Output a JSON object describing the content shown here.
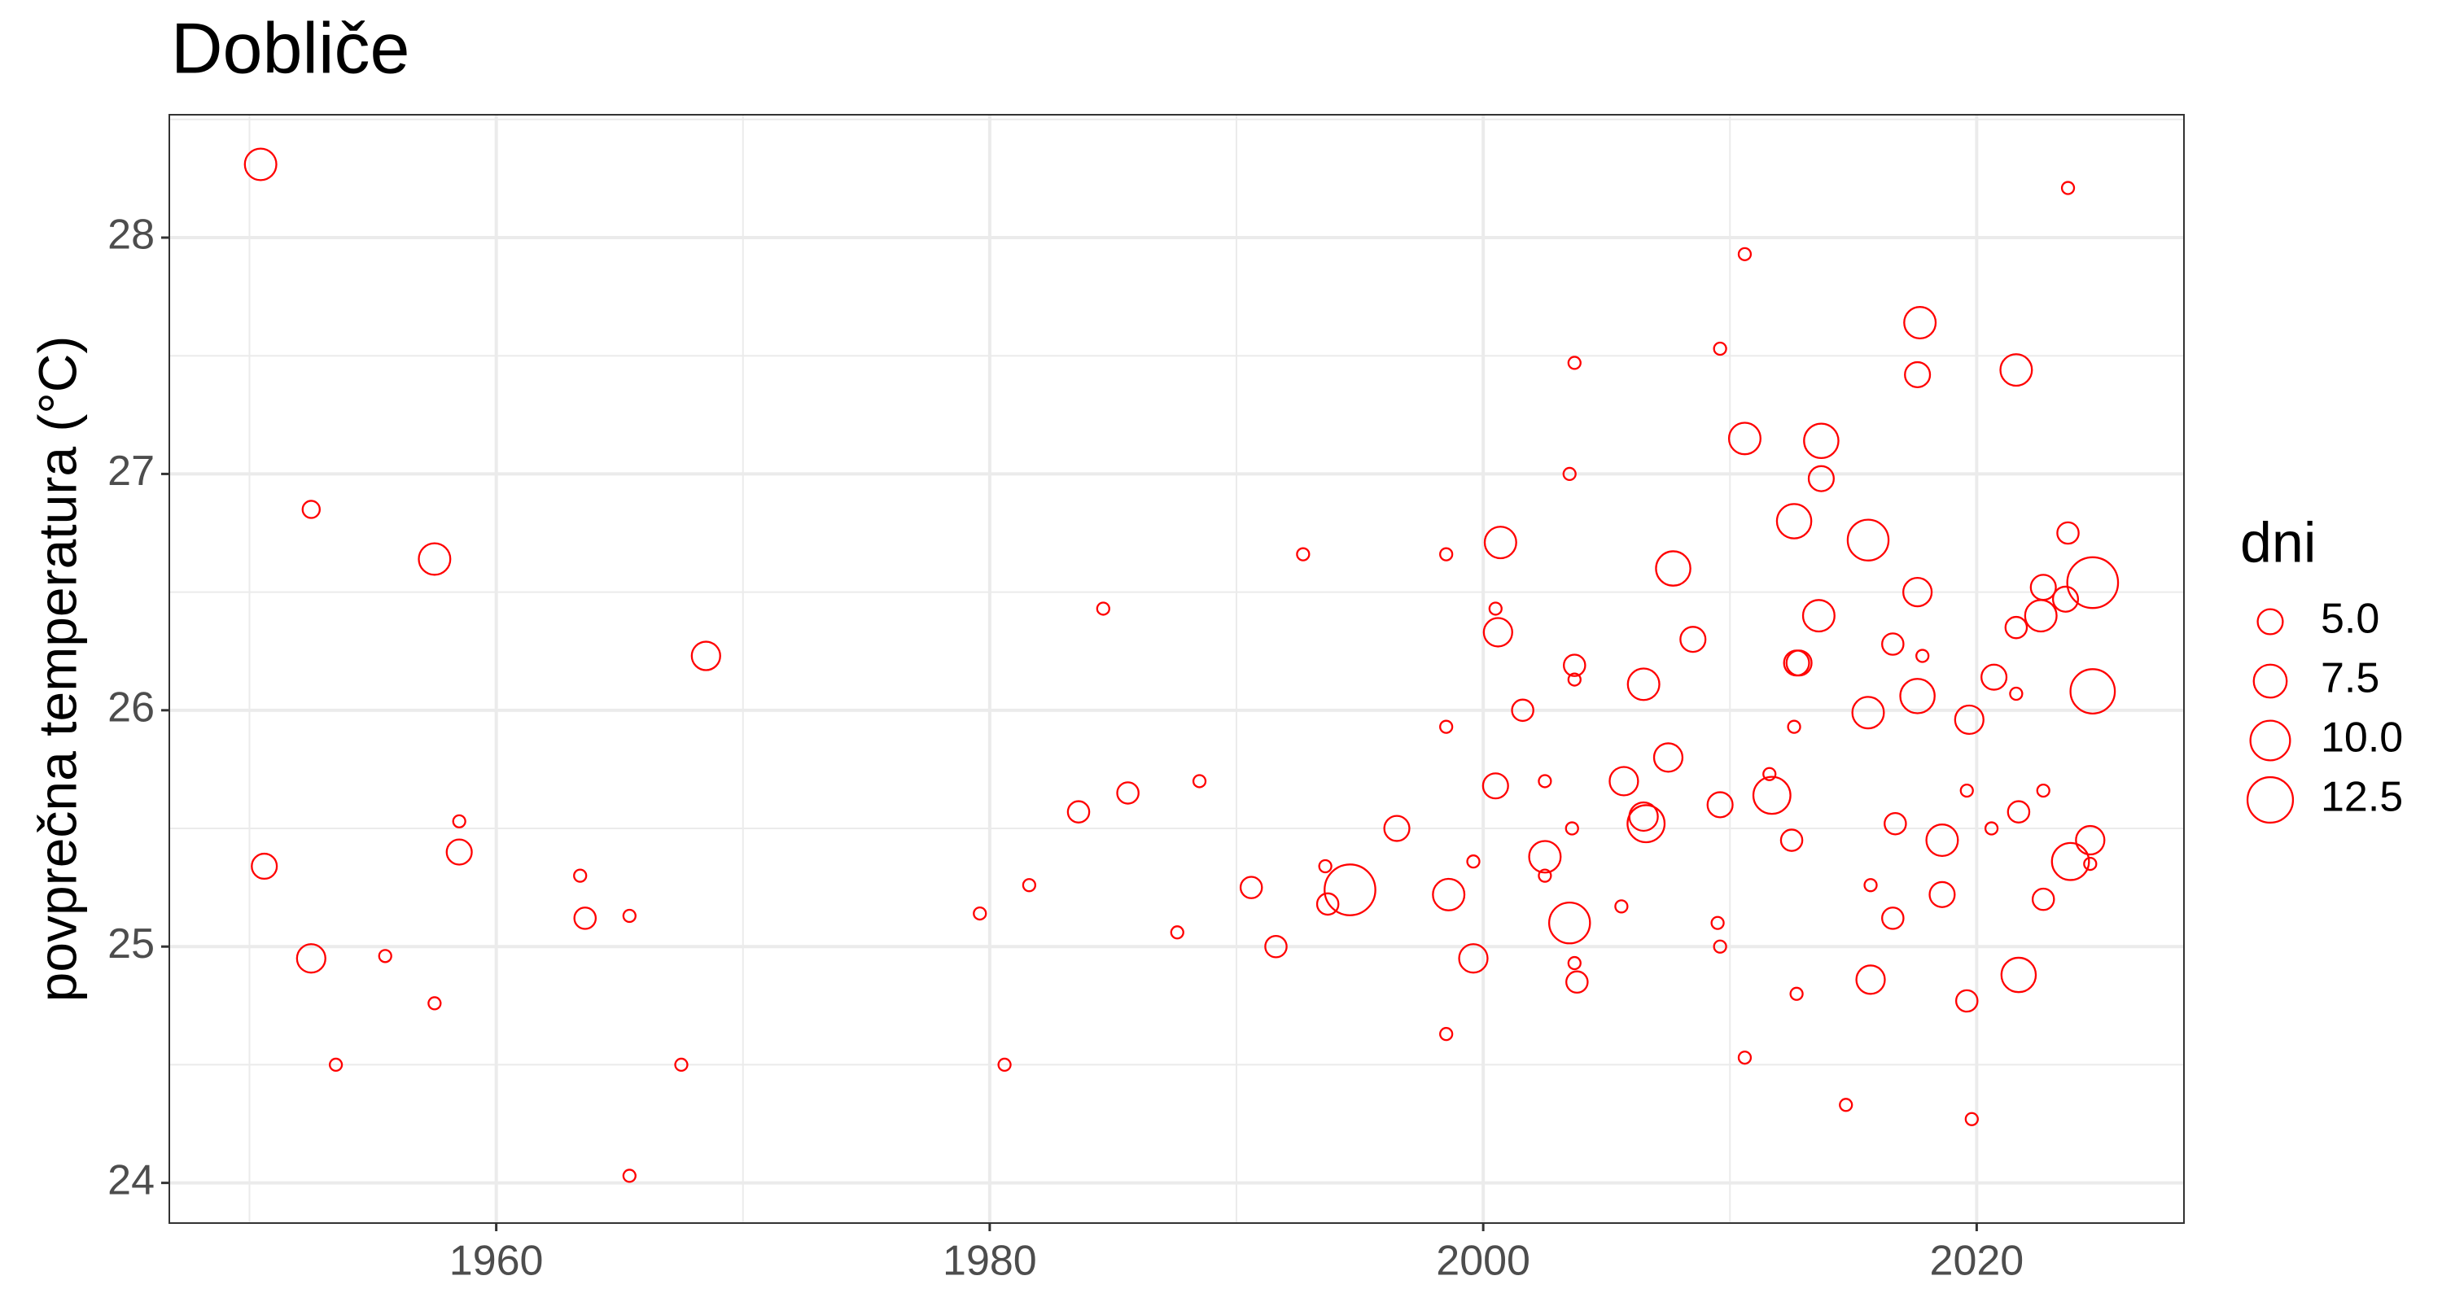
{
  "chart_data": {
    "type": "scatter",
    "title": "Dobliče",
    "y_label": "povprečna temperatura (°C)",
    "color": "#ff0000",
    "grid": true,
    "xlim": [
      1946.75,
      2028.4
    ],
    "ylim": [
      23.83,
      28.52
    ],
    "xticks": [
      1960,
      1980,
      2000,
      2020
    ],
    "yticks": [
      24,
      25,
      26,
      27,
      28
    ],
    "x": [
      1950.45,
      1950.6,
      1952.5,
      1952.5,
      1953.5,
      1955.5,
      1957.5,
      1957.5,
      1958.5,
      1958.5,
      1963.4,
      1963.6,
      1965.4,
      1965.4,
      1967.5,
      1968.5,
      1979.6,
      1980.6,
      1981.6,
      1983.6,
      1984.6,
      1985.6,
      1987.6,
      1988.5,
      1990.6,
      1991.6,
      1992.7,
      1993.6,
      1993.7,
      1994.6,
      1996.5,
      1998.5,
      1998.5,
      1998.6,
      1998.5,
      1999.6,
      1999.6,
      2000.7,
      2000.5,
      2000.6,
      2000.5,
      2001.6,
      2002.5,
      2002.5,
      2002.5,
      2003.7,
      2003.5,
      2003.7,
      2003.7,
      2003.6,
      2003.5,
      2003.7,
      2003.8,
      2005.6,
      2005.7,
      2006.5,
      2006.5,
      2006.6,
      2007.7,
      2007.5,
      2008.5,
      2009.6,
      2009.6,
      2009.5,
      2009.6,
      2010.6,
      2010.6,
      2010.6,
      2011.6,
      2011.7,
      2012.6,
      2012.7,
      2012.8,
      2012.6,
      2012.5,
      2012.7,
      2013.7,
      2013.7,
      2013.6,
      2014.7,
      2015.6,
      2015.6,
      2015.7,
      2015.7,
      2016.6,
      2016.7,
      2016.6,
      2017.7,
      2017.6,
      2017.8,
      2017.6,
      2017.6,
      2018.6,
      2018.6,
      2019.7,
      2019.6,
      2019.6,
      2019.8,
      2020.7,
      2020.6,
      2021.6,
      2021.6,
      2021.6,
      2021.7,
      2021.7,
      2022.7,
      2022.6,
      2022.7,
      2022.7,
      2023.7,
      2023.7,
      2023.6,
      2023.8,
      2024.7,
      2024.7,
      2024.6,
      2024.6
    ],
    "y": [
      28.31,
      25.34,
      26.85,
      24.95,
      24.5,
      24.96,
      26.64,
      24.76,
      25.53,
      25.4,
      25.3,
      25.12,
      25.13,
      24.03,
      24.5,
      26.23,
      25.14,
      24.5,
      25.26,
      25.57,
      26.43,
      25.65,
      25.06,
      25.7,
      25.25,
      25.0,
      26.66,
      25.34,
      25.18,
      25.24,
      25.5,
      26.66,
      25.93,
      25.22,
      24.63,
      25.36,
      24.95,
      26.71,
      26.43,
      26.33,
      25.68,
      26.0,
      25.7,
      25.38,
      25.3,
      27.47,
      27.0,
      26.19,
      26.13,
      25.5,
      25.1,
      24.93,
      24.85,
      25.17,
      25.7,
      26.11,
      25.55,
      25.52,
      26.6,
      25.8,
      26.3,
      27.53,
      25.6,
      25.1,
      25.0,
      27.93,
      27.15,
      24.53,
      25.73,
      25.64,
      26.8,
      26.2,
      26.2,
      25.93,
      25.45,
      24.8,
      27.14,
      26.98,
      26.4,
      24.33,
      26.72,
      25.99,
      25.26,
      24.86,
      26.28,
      25.52,
      25.12,
      27.64,
      27.42,
      26.23,
      26.5,
      26.06,
      25.45,
      25.22,
      25.96,
      25.66,
      24.77,
      24.27,
      26.14,
      25.5,
      27.44,
      26.35,
      26.07,
      25.57,
      24.88,
      26.52,
      26.4,
      25.66,
      25.2,
      28.21,
      26.75,
      26.47,
      25.36,
      26.54,
      26.08,
      25.45,
      25.35
    ],
    "size": [
      7,
      5,
      3,
      6,
      2,
      2,
      7,
      2,
      2,
      5,
      2,
      4,
      2,
      2,
      2,
      6,
      2,
      2,
      2,
      4,
      2,
      4,
      2,
      2,
      4,
      4,
      2,
      2,
      4,
      15,
      5,
      2,
      2,
      7,
      2,
      2,
      6,
      7,
      2,
      6,
      5,
      4,
      2,
      7,
      2,
      2,
      2,
      4,
      2,
      2,
      10.5,
      2,
      4,
      2,
      6,
      7,
      6,
      9,
      8,
      6,
      5,
      2,
      5,
      2,
      2,
      2,
      7,
      2,
      2,
      9,
      8,
      5,
      5,
      2,
      4,
      2,
      8,
      5,
      7,
      2,
      10.5,
      7,
      2,
      6,
      4,
      4,
      4,
      7,
      5,
      2,
      6,
      8,
      7,
      5,
      6,
      2,
      4,
      2,
      5,
      2,
      7,
      4,
      2,
      4,
      8,
      5,
      7,
      2,
      4,
      2,
      4,
      5,
      9,
      15,
      12,
      6,
      2
    ],
    "size_legend": {
      "title": "dni",
      "values": [
        {
          "value": 5,
          "label": "5.0"
        },
        {
          "value": 7.5,
          "label": "7.5"
        },
        {
          "value": 10,
          "label": "10.0"
        },
        {
          "value": 12.5,
          "label": "12.5"
        }
      ]
    }
  }
}
